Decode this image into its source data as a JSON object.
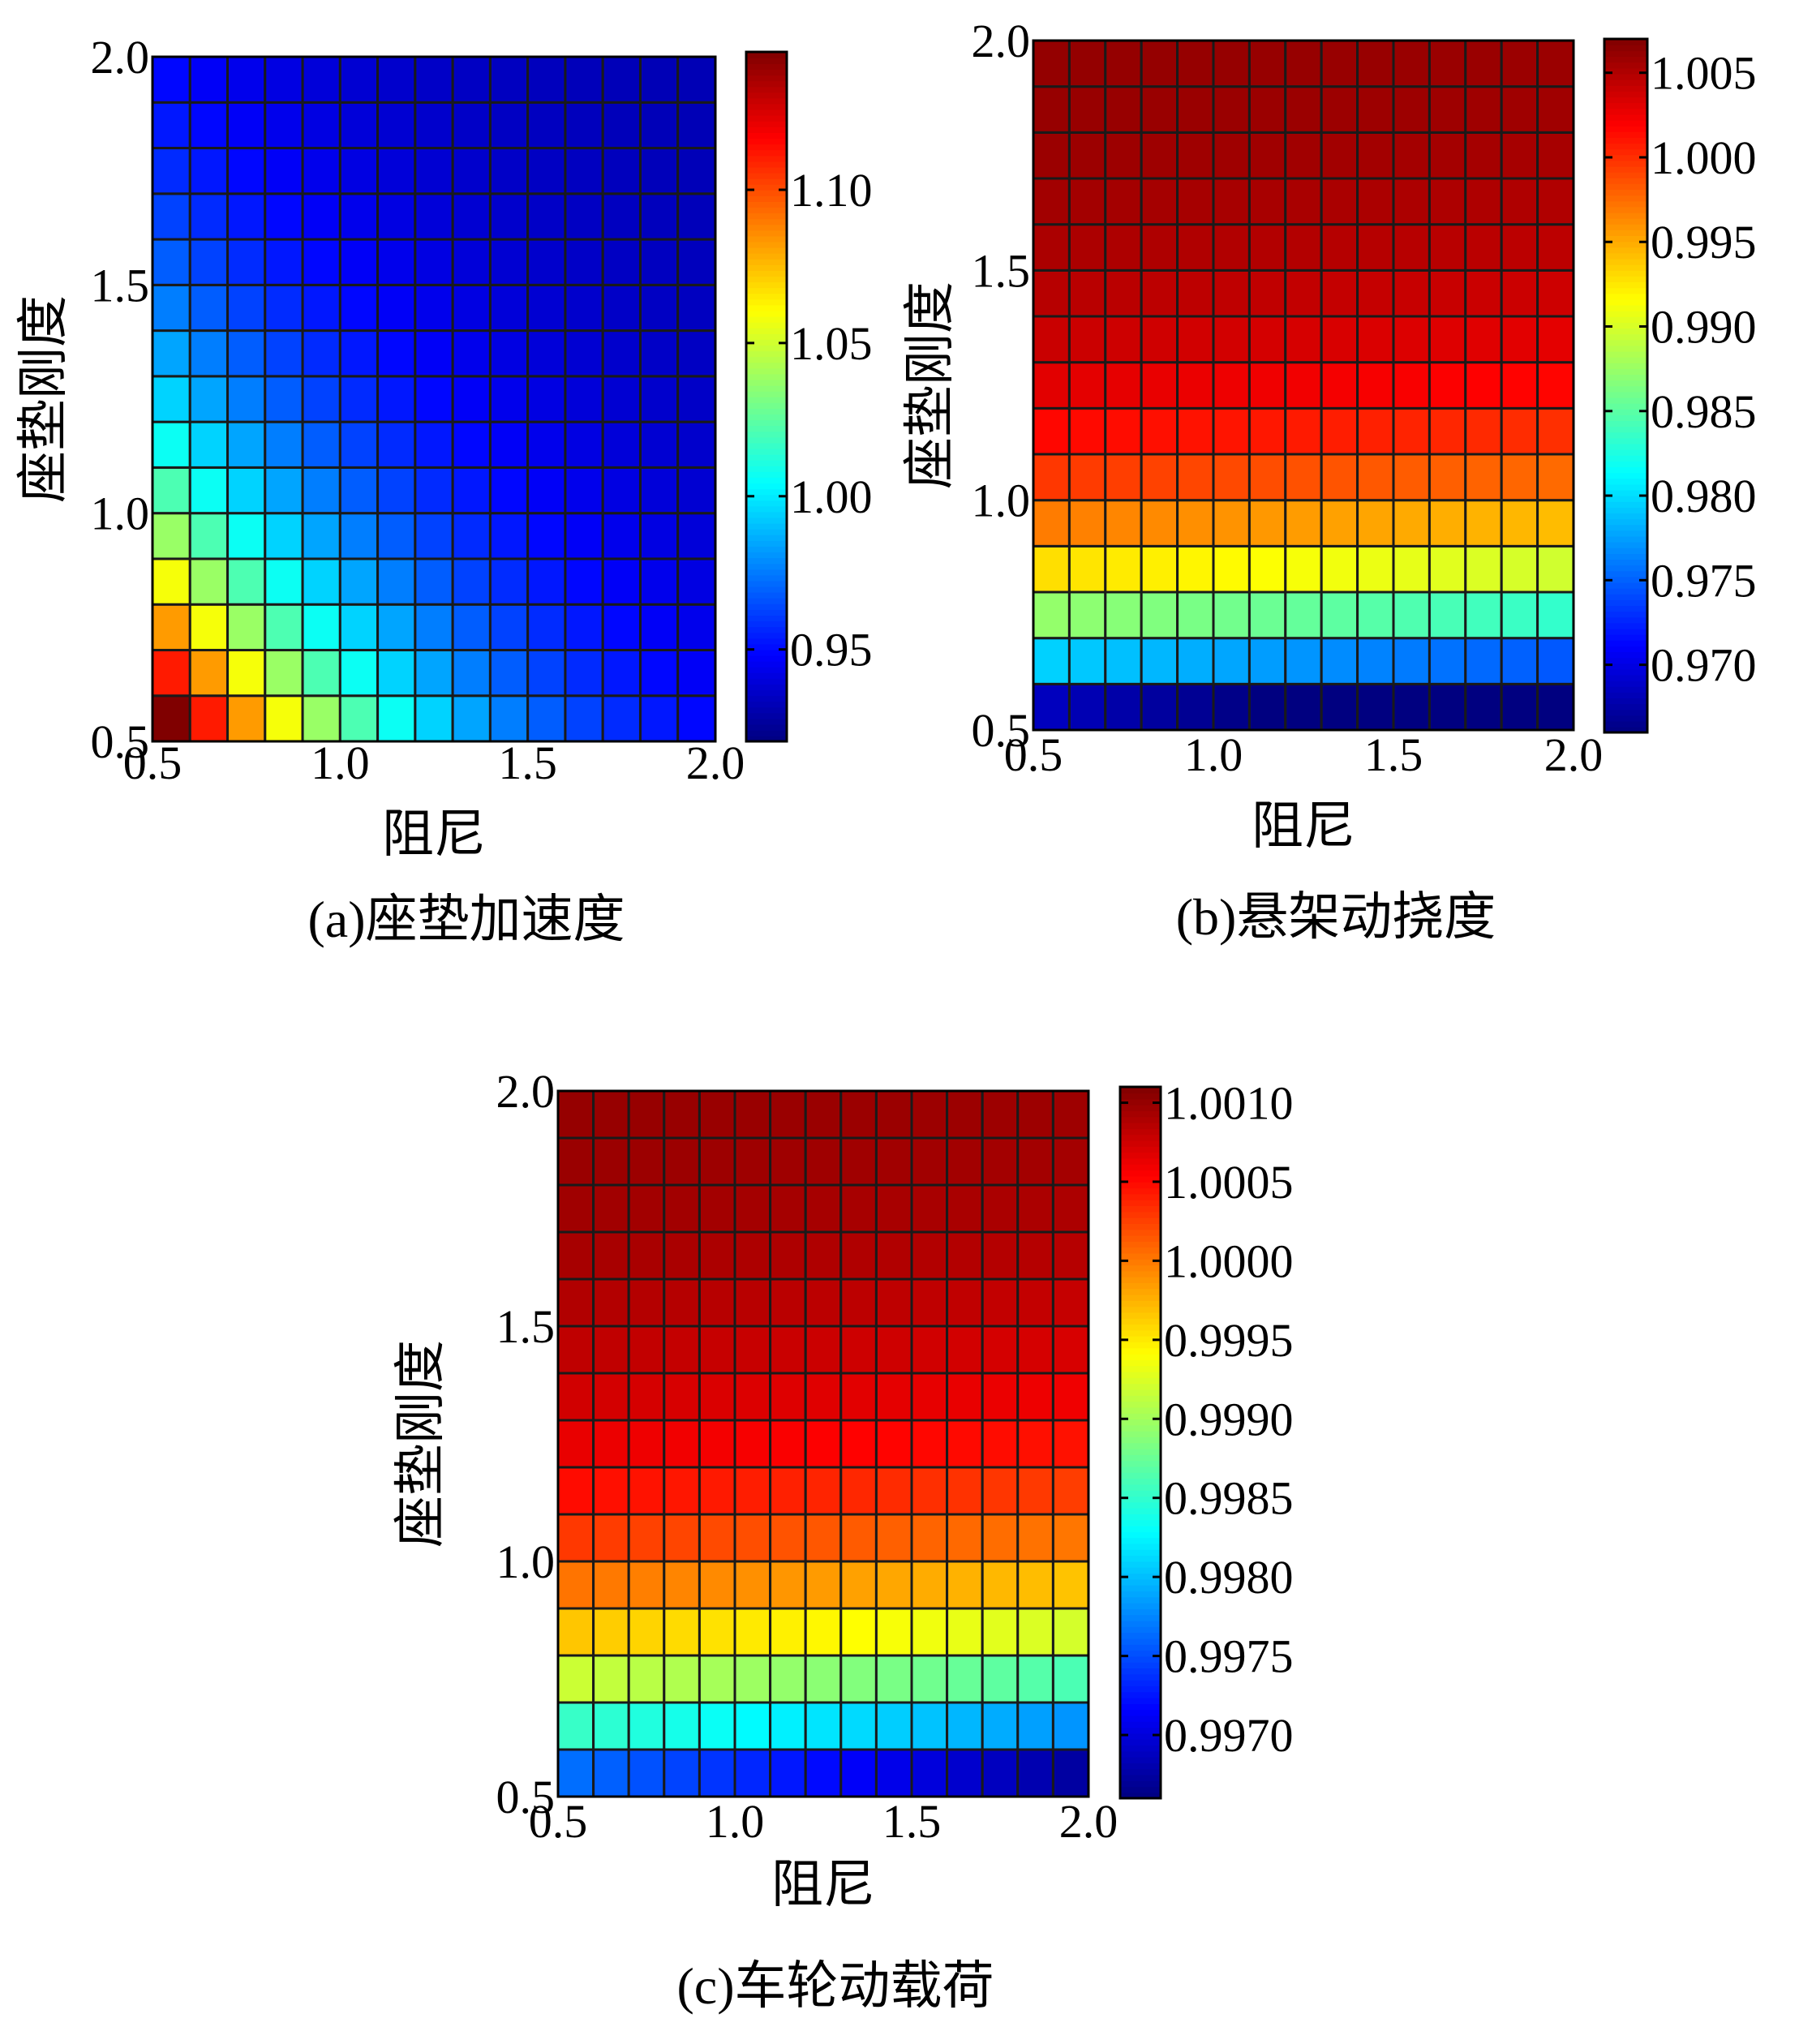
{
  "chart_data": [
    {
      "type": "heatmap",
      "caption": "(a)座垫加速度",
      "xlabel": "阻尼",
      "ylabel": "座垫刚度",
      "xlim": [
        0.5,
        2.0
      ],
      "ylim": [
        0.5,
        2.0
      ],
      "xticks": [
        "0.5",
        "1.0",
        "1.5",
        "2.0"
      ],
      "yticks": [
        "0.5",
        "1.0",
        "1.5",
        "2.0"
      ],
      "grid_size": [
        15,
        15
      ],
      "colormap": "jet",
      "clim": [
        0.92,
        1.145
      ],
      "colorbar_ticks": [
        "0.95",
        "1.00",
        "1.05",
        "1.10"
      ],
      "x": [
        0.5,
        0.607,
        0.714,
        0.821,
        0.929,
        1.036,
        1.143,
        1.25,
        1.357,
        1.464,
        1.571,
        1.679,
        1.786,
        1.893,
        2.0
      ],
      "y": [
        0.5,
        0.607,
        0.714,
        0.821,
        0.929,
        1.036,
        1.143,
        1.25,
        1.357,
        1.464,
        1.571,
        1.679,
        1.786,
        1.893,
        2.0
      ],
      "values_desc": "Highest (~1.14) at damping 0.5 / stiffness 0.5, decreasing toward ~0.93 at damping 2.0 / stiffness 2.0"
    },
    {
      "type": "heatmap",
      "caption": "(b)悬架动挠度",
      "xlabel": "阻尼",
      "ylabel": "座垫刚度",
      "xlim": [
        0.5,
        2.0
      ],
      "ylim": [
        0.5,
        2.0
      ],
      "xticks": [
        "0.5",
        "1.0",
        "1.5",
        "2.0"
      ],
      "yticks": [
        "0.5",
        "1.0",
        "1.5",
        "2.0"
      ],
      "grid_size": [
        15,
        15
      ],
      "colormap": "jet",
      "clim": [
        0.966,
        1.007
      ],
      "colorbar_ticks": [
        "0.970",
        "0.975",
        "0.980",
        "0.985",
        "0.990",
        "0.995",
        "1.000",
        "1.005"
      ],
      "x": [
        0.5,
        0.607,
        0.714,
        0.821,
        0.929,
        1.036,
        1.143,
        1.25,
        1.357,
        1.464,
        1.571,
        1.679,
        1.786,
        1.893,
        2.0
      ],
      "y": [
        0.5,
        0.607,
        0.714,
        0.821,
        0.929,
        1.036,
        1.143,
        1.25,
        1.357,
        1.464,
        1.571,
        1.679,
        1.786,
        1.893,
        2.0
      ],
      "values_desc": "Mostly ~1.0 to 1.006 for stiffness above 1.0, dropping to ~0.967 at stiffness 0.5 / damping 2.0"
    },
    {
      "type": "heatmap",
      "caption": "(c)车轮动载荷",
      "xlabel": "阻尼",
      "ylabel": "座垫刚度",
      "xlim": [
        0.5,
        2.0
      ],
      "ylim": [
        0.5,
        2.0
      ],
      "xticks": [
        "0.5",
        "1.0",
        "1.5",
        "2.0"
      ],
      "yticks": [
        "0.5",
        "1.0",
        "1.5",
        "2.0"
      ],
      "grid_size": [
        15,
        15
      ],
      "colormap": "jet",
      "clim": [
        0.9966,
        1.0011
      ],
      "colorbar_ticks": [
        "0.9970",
        "0.9975",
        "0.9980",
        "0.9985",
        "0.9990",
        "0.9995",
        "1.0000",
        "1.0005",
        "1.0010"
      ],
      "x": [
        0.5,
        0.607,
        0.714,
        0.821,
        0.929,
        1.036,
        1.143,
        1.25,
        1.357,
        1.464,
        1.571,
        1.679,
        1.786,
        1.893,
        2.0
      ],
      "y": [
        0.5,
        0.607,
        0.714,
        0.821,
        0.929,
        1.036,
        1.143,
        1.25,
        1.357,
        1.464,
        1.571,
        1.679,
        1.786,
        1.893,
        2.0
      ],
      "values_desc": "Near 1.0010 at stiffness 2.0, decreasing to ~0.9967 at stiffness 0.5 / damping 2.0"
    }
  ]
}
